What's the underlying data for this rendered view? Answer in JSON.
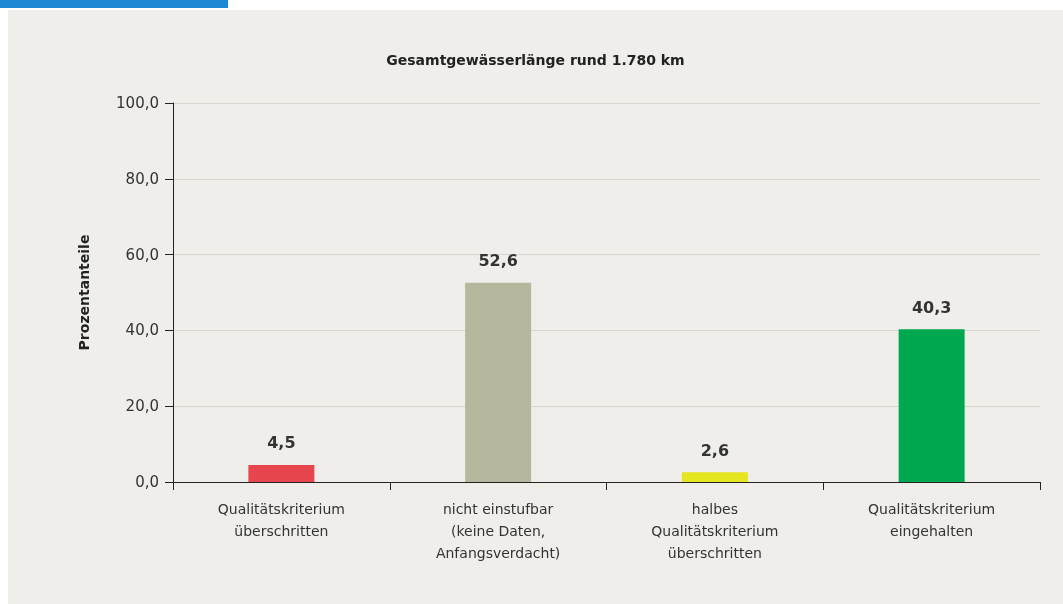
{
  "chart_data": {
    "type": "bar",
    "title": "Gesamtgewässerlänge rund 1.780 km",
    "ylabel": "Prozentanteile",
    "categories": [
      "Qualitätskriterium\nüberschritten",
      "nicht einstufbar\n(keine Daten,\nAnfangsverdacht)",
      "halbes\nQualitätskriterium\nüberschritten",
      "Qualitätskriterium\neingehalten"
    ],
    "values": [
      4.5,
      52.6,
      2.6,
      40.3
    ],
    "value_labels": [
      "4,5",
      "52,6",
      "2,6",
      "40,3"
    ],
    "colors": [
      "#e8464e",
      "#b5b89c",
      "#e5e520",
      "#00a94f"
    ],
    "ylim": [
      0,
      100
    ],
    "yticks": [
      {
        "value": 0,
        "label": "0,0"
      },
      {
        "value": 20,
        "label": "20,0"
      },
      {
        "value": 40,
        "label": "40,0"
      },
      {
        "value": 60,
        "label": "60,0"
      },
      {
        "value": 80,
        "label": "80,0"
      },
      {
        "value": 100,
        "label": "100,0"
      }
    ],
    "grid": "y"
  }
}
